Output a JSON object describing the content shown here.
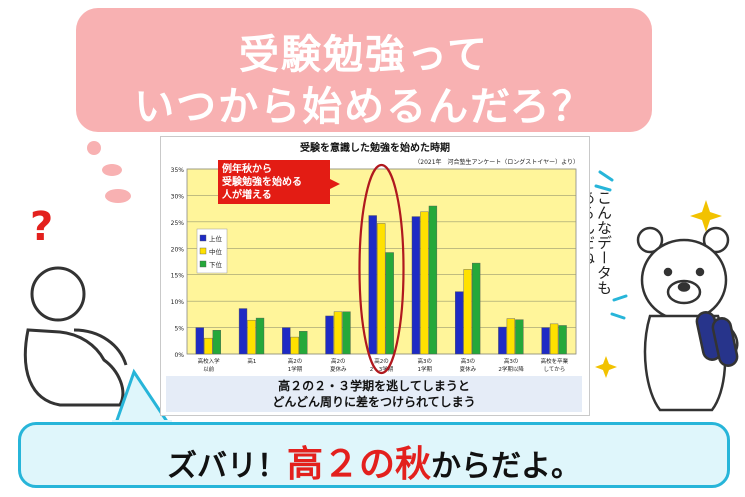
{
  "title": {
    "line1": "受験勉強って",
    "line2": "いつから始めるんだろ？"
  },
  "chart_data": {
    "type": "bar",
    "title": "受験を意識した勉強を始めた時期",
    "source": "（2021年　河合塾生アンケート（ロングストイヤー）より）",
    "categories": [
      [
        "高校入学",
        "以前"
      ],
      [
        "高1"
      ],
      [
        "高2の",
        "1学期"
      ],
      [
        "高2の",
        "夏休み"
      ],
      [
        "高2の",
        "2・3学期"
      ],
      [
        "高3の",
        "1学期"
      ],
      [
        "高3の",
        "夏休み"
      ],
      [
        "高3の",
        "2学期以降"
      ],
      [
        "高校を卒業",
        "してから"
      ]
    ],
    "series": [
      {
        "name": "上位",
        "color": "#1e2bc4",
        "values": [
          5.0,
          8.6,
          5.0,
          7.2,
          26.2,
          26.0,
          11.8,
          5.1,
          5.0
        ]
      },
      {
        "name": "中位",
        "color": "#ffe100",
        "values": [
          3.0,
          6.4,
          3.2,
          8.0,
          24.7,
          26.9,
          16.0,
          6.7,
          5.7
        ]
      },
      {
        "name": "下位",
        "color": "#25a83a",
        "values": [
          4.5,
          6.8,
          4.3,
          8.0,
          19.2,
          28.0,
          17.2,
          6.5,
          5.4
        ]
      }
    ],
    "yticks": [
      "0%",
      "5%",
      "10%",
      "15%",
      "20%",
      "25%",
      "30%",
      "35%"
    ],
    "ylim": [
      0,
      35
    ],
    "grid": true,
    "legend": "left",
    "plot_background": "#fff59a"
  },
  "callout": {
    "line1": "例年秋から",
    "line2": "受験勉強を始める",
    "line3": "人が増える"
  },
  "caption": {
    "line1": "高２の２・３学期を逃してしまうと",
    "line2": "どんどん周りに差をつけられてしまう"
  },
  "side_text": {
    "line1": "こんなデータ",
    "line2": "もあるんだね"
  },
  "question_mark": "?",
  "bottom": {
    "part1": "ズバリ！",
    "part2": "高２の秋",
    "part3": "からだよ。"
  },
  "colors": {
    "title_bg": "#f8b1b2",
    "bubble_border": "#27b5d9",
    "bubble_bg": "#dff6fb",
    "highlight": "#e3201d",
    "callout_bg": "#e31c14",
    "caption_bg": "#e5ecf7"
  },
  "icons": [
    "thinking-person-icon",
    "question-mark-icon",
    "bear-character-icon",
    "sparkle-icon"
  ]
}
